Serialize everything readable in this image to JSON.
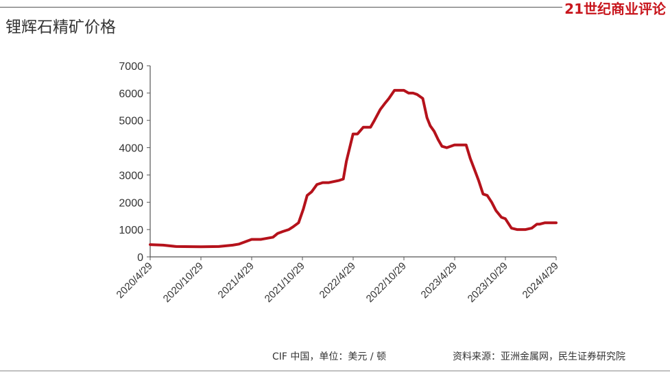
{
  "header": {
    "brand": "21世纪商业评论",
    "title": "锂辉石精矿价格"
  },
  "footer": {
    "unit_note": "CIF 中国，单位：美元 / 顿",
    "source": "资料来源：亚洲金属网，民生证券研究院"
  },
  "colors": {
    "line": "#b5121b",
    "brand": "#c8161d",
    "axis": "#555555",
    "text": "#333333"
  },
  "chart_data": {
    "type": "line",
    "title": "锂辉石精矿价格",
    "xlabel": "",
    "ylabel": "",
    "ylim": [
      0,
      7000
    ],
    "yticks": [
      0,
      1000,
      2000,
      3000,
      4000,
      5000,
      6000,
      7000
    ],
    "x_tick_labels": [
      "2020/4/29",
      "2020/10/29",
      "2021/4/29",
      "2021/10/29",
      "2022/4/29",
      "2022/10/29",
      "2023/4/29",
      "2023/10/29",
      "2024/4/29"
    ],
    "xlim": [
      "2020-04-29",
      "2024-04-29"
    ],
    "grid": false,
    "legend": "none",
    "series": [
      {
        "x": [
          "2020-04-29",
          "2020-06-15",
          "2020-08-01",
          "2020-10-29",
          "2021-01-01",
          "2021-02-20",
          "2021-03-15",
          "2021-04-29",
          "2021-06-01",
          "2021-07-15",
          "2021-08-01",
          "2021-08-20",
          "2021-09-10",
          "2021-09-25",
          "2021-10-15",
          "2021-11-01",
          "2021-11-15",
          "2021-12-01",
          "2021-12-20",
          "2022-01-10",
          "2022-02-01",
          "2022-03-10",
          "2022-03-25",
          "2022-04-05",
          "2022-04-29",
          "2022-05-15",
          "2022-06-05",
          "2022-07-01",
          "2022-07-15",
          "2022-08-05",
          "2022-08-20",
          "2022-09-05",
          "2022-09-25",
          "2022-10-10",
          "2022-10-29",
          "2022-11-15",
          "2022-12-01",
          "2022-12-15",
          "2023-01-05",
          "2023-01-20",
          "2023-02-01",
          "2023-02-15",
          "2023-03-01",
          "2023-03-15",
          "2023-04-01",
          "2023-04-29",
          "2023-05-20",
          "2023-06-10",
          "2023-06-25",
          "2023-07-10",
          "2023-07-25",
          "2023-08-10",
          "2023-08-25",
          "2023-09-10",
          "2023-09-25",
          "2023-10-15",
          "2023-10-29",
          "2023-11-20",
          "2023-12-10",
          "2023-12-25",
          "2024-01-10",
          "2024-02-01",
          "2024-02-20",
          "2024-03-01",
          "2024-03-20",
          "2024-04-29"
        ],
        "y": [
          450,
          430,
          380,
          370,
          380,
          430,
          470,
          640,
          640,
          720,
          860,
          930,
          1000,
          1100,
          1250,
          1750,
          2250,
          2380,
          2650,
          2720,
          2720,
          2800,
          2850,
          3500,
          4500,
          4500,
          4750,
          4750,
          5000,
          5400,
          5600,
          5800,
          6100,
          6100,
          6100,
          6000,
          6000,
          5950,
          5800,
          5100,
          4800,
          4600,
          4300,
          4050,
          4000,
          4100,
          4100,
          4100,
          3600,
          3200,
          2800,
          2300,
          2250,
          2000,
          1700,
          1450,
          1400,
          1050,
          1000,
          1000,
          1000,
          1050,
          1200,
          1200,
          1250,
          1250
        ]
      }
    ]
  }
}
